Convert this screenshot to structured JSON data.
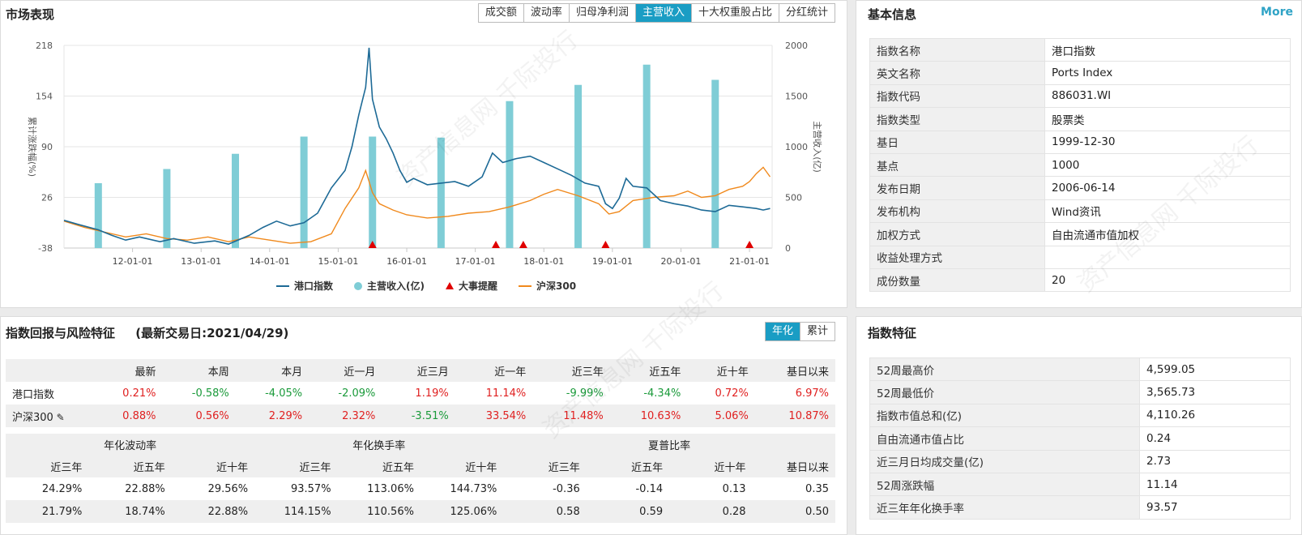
{
  "market": {
    "title": "市场表现",
    "tabs": [
      "成交额",
      "波动率",
      "归母净利润",
      "主营收入",
      "十大权重股占比",
      "分红统计"
    ],
    "active_tab": 3
  },
  "chart_data": {
    "type": "line",
    "title": "",
    "ylabel_left": "累计涨跌幅(%)",
    "ylabel_right": "主营收入(亿)",
    "left_ticks": [
      "218",
      "154",
      "90",
      "26",
      "-38"
    ],
    "right_ticks": [
      "2000",
      "1500",
      "1000",
      "500",
      "0"
    ],
    "ylim_left": [
      -38,
      218
    ],
    "ylim_right": [
      0,
      2000
    ],
    "x_ticks": [
      "12-01-01",
      "13-01-01",
      "14-01-01",
      "15-01-01",
      "16-01-01",
      "17-01-01",
      "18-01-01",
      "19-01-01",
      "20-01-01",
      "21-01-01"
    ],
    "legend": [
      "港口指数",
      "主营收入(亿)",
      "大事提醒",
      "沪深300"
    ],
    "legend_position": "bottom",
    "colors": {
      "port": "#1d6a96",
      "revenue": "#7fcdd6",
      "event": "#e00000",
      "hs300": "#f0891c"
    },
    "series": [
      {
        "name": "港口指数",
        "x": [
          2011.0,
          2011.2,
          2011.5,
          2011.7,
          2011.9,
          2012.1,
          2012.4,
          2012.6,
          2012.9,
          2013.2,
          2013.4,
          2013.7,
          2013.9,
          2014.1,
          2014.3,
          2014.5,
          2014.7,
          2014.9,
          2015.1,
          2015.2,
          2015.3,
          2015.4,
          2015.45,
          2015.5,
          2015.6,
          2015.7,
          2015.8,
          2015.9,
          2016.0,
          2016.1,
          2016.3,
          2016.5,
          2016.7,
          2016.9,
          2017.1,
          2017.25,
          2017.4,
          2017.6,
          2017.8,
          2018.0,
          2018.2,
          2018.4,
          2018.6,
          2018.8,
          2018.9,
          2019.0,
          2019.1,
          2019.2,
          2019.3,
          2019.5,
          2019.7,
          2019.9,
          2020.1,
          2020.3,
          2020.5,
          2020.7,
          2020.9,
          2021.1,
          2021.2,
          2021.3
        ],
        "values": [
          -3,
          -8,
          -15,
          -22,
          -28,
          -24,
          -30,
          -26,
          -32,
          -29,
          -33,
          -22,
          -12,
          -4,
          -10,
          -6,
          6,
          38,
          60,
          90,
          130,
          165,
          215,
          150,
          115,
          100,
          82,
          60,
          45,
          50,
          42,
          44,
          46,
          40,
          52,
          82,
          70,
          75,
          78,
          70,
          62,
          54,
          44,
          40,
          18,
          12,
          25,
          50,
          40,
          38,
          22,
          18,
          15,
          10,
          8,
          16,
          14,
          12,
          10,
          12
        ]
      },
      {
        "name": "沪深300",
        "x": [
          2011.0,
          2011.3,
          2011.6,
          2011.9,
          2012.2,
          2012.5,
          2012.8,
          2013.1,
          2013.4,
          2013.7,
          2014.0,
          2014.3,
          2014.6,
          2014.9,
          2015.1,
          2015.3,
          2015.4,
          2015.5,
          2015.6,
          2015.8,
          2016.0,
          2016.3,
          2016.6,
          2016.9,
          2017.2,
          2017.5,
          2017.8,
          2018.0,
          2018.2,
          2018.5,
          2018.8,
          2018.95,
          2019.1,
          2019.3,
          2019.6,
          2019.9,
          2020.1,
          2020.3,
          2020.5,
          2020.7,
          2020.9,
          2021.0,
          2021.1,
          2021.2,
          2021.3
        ],
        "values": [
          -4,
          -12,
          -18,
          -24,
          -20,
          -26,
          -28,
          -24,
          -30,
          -24,
          -28,
          -32,
          -30,
          -20,
          12,
          38,
          60,
          32,
          18,
          10,
          4,
          0,
          2,
          6,
          8,
          14,
          22,
          30,
          36,
          28,
          18,
          5,
          8,
          22,
          26,
          28,
          34,
          26,
          28,
          36,
          40,
          46,
          56,
          64,
          52
        ]
      },
      {
        "name": "主营收入(亿)",
        "x": [
          2011.5,
          2012.5,
          2013.5,
          2014.5,
          2015.5,
          2016.5,
          2017.5,
          2018.5,
          2019.5,
          2020.5
        ],
        "values": [
          640,
          780,
          930,
          1100,
          1100,
          1090,
          1450,
          1610,
          1810,
          1660
        ]
      }
    ],
    "events_x": [
      2015.5,
      2017.3,
      2017.7,
      2018.9,
      2021.0
    ]
  },
  "basic": {
    "title": "基本信息",
    "more": "More",
    "rows": [
      {
        "k": "指数名称",
        "v": "港口指数"
      },
      {
        "k": "英文名称",
        "v": "Ports Index"
      },
      {
        "k": "指数代码",
        "v": "886031.WI"
      },
      {
        "k": "指数类型",
        "v": "股票类"
      },
      {
        "k": "基日",
        "v": "1999-12-30"
      },
      {
        "k": "基点",
        "v": "1000"
      },
      {
        "k": "发布日期",
        "v": "2006-06-14"
      },
      {
        "k": "发布机构",
        "v": "Wind资讯"
      },
      {
        "k": "加权方式",
        "v": "自由流通市值加权"
      },
      {
        "k": "收益处理方式",
        "v": ""
      },
      {
        "k": "成份数量",
        "v": "20"
      }
    ]
  },
  "returns": {
    "title": "指数回报与风险特征",
    "date_label": "(最新交易日:2021/04/29)",
    "mode_tabs": [
      "年化",
      "累计"
    ],
    "headers": [
      "最新",
      "本周",
      "本月",
      "近一月",
      "近三月",
      "近一年",
      "近三年",
      "近五年",
      "近十年",
      "基日以来"
    ],
    "rows": [
      {
        "name": "港口指数",
        "values": [
          "0.21%",
          "-0.58%",
          "-4.05%",
          "-2.09%",
          "1.19%",
          "11.14%",
          "-9.99%",
          "-4.34%",
          "0.72%",
          "6.97%"
        ]
      },
      {
        "name": "沪深300",
        "values": [
          "0.88%",
          "0.56%",
          "2.29%",
          "2.32%",
          "-3.51%",
          "33.54%",
          "11.48%",
          "10.63%",
          "5.06%",
          "10.87%"
        ]
      }
    ],
    "risk_groups": [
      "年化波动率",
      "年化换手率",
      "夏普比率"
    ],
    "risk_headers": [
      "近三年",
      "近五年",
      "近十年",
      "近三年",
      "近五年",
      "近十年",
      "近三年",
      "近五年",
      "近十年",
      "基日以来"
    ],
    "risk_rows": [
      [
        "24.29%",
        "22.88%",
        "29.56%",
        "93.57%",
        "113.06%",
        "144.73%",
        "-0.36",
        "-0.14",
        "0.13",
        "0.35"
      ],
      [
        "21.79%",
        "18.74%",
        "22.88%",
        "114.15%",
        "110.56%",
        "125.06%",
        "0.58",
        "0.59",
        "0.28",
        "0.50"
      ]
    ]
  },
  "features": {
    "title": "指数特征",
    "rows": [
      {
        "k": "52周最高价",
        "v": "4,599.05"
      },
      {
        "k": "52周最低价",
        "v": "3,565.73"
      },
      {
        "k": "指数市值总和(亿)",
        "v": "4,110.26"
      },
      {
        "k": "自由流通市值占比",
        "v": "0.24"
      },
      {
        "k": "近三月日均成交量(亿)",
        "v": "2.73"
      },
      {
        "k": "52周涨跌幅",
        "v": "11.14"
      },
      {
        "k": "近三年年化换手率",
        "v": "93.57"
      }
    ]
  }
}
